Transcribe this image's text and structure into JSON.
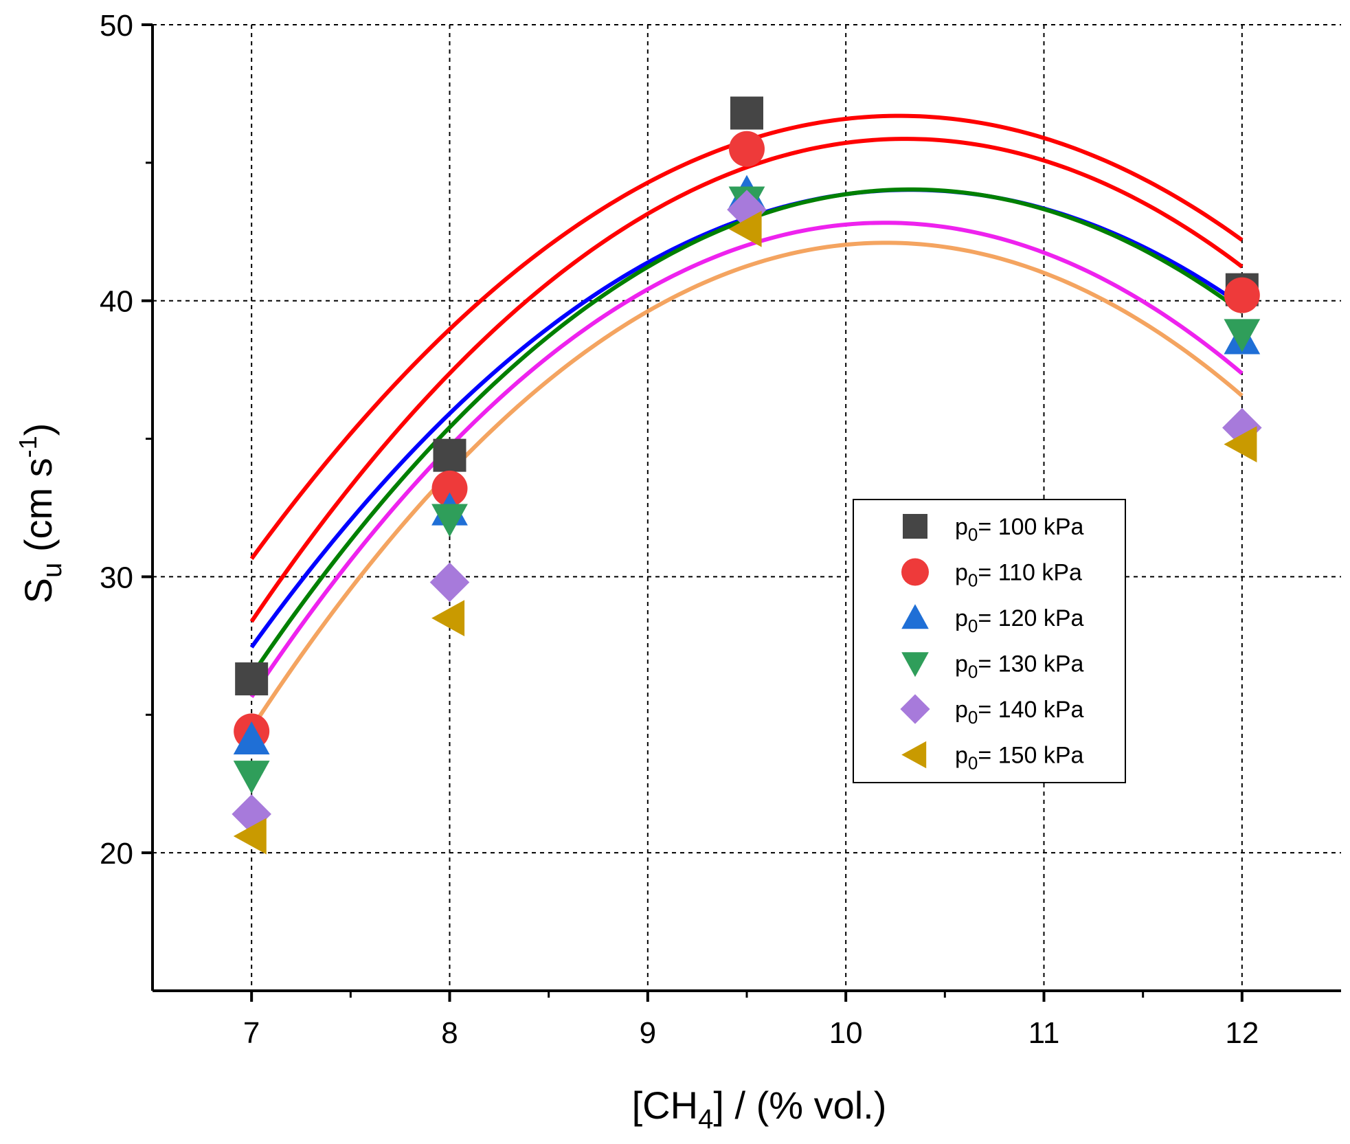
{
  "chart_data": {
    "type": "scatter",
    "title": "",
    "xlabel": {
      "main": "[CH",
      "sub": "4",
      "rest": "] / (% vol.)"
    },
    "ylabel": {
      "main": "S",
      "sub": "u",
      "unit_open": " (cm s",
      "sup": "-1",
      "unit_close": ")"
    },
    "xlim": [
      6.5,
      12.5
    ],
    "ylim": [
      15,
      50
    ],
    "xticks": [
      7,
      8,
      9,
      10,
      11,
      12
    ],
    "yticks": [
      20,
      30,
      40,
      50
    ],
    "x_minor_ticks": [
      7.5,
      8.5,
      9.5,
      10.5,
      11.5
    ],
    "y_minor_ticks": [
      25,
      35,
      45
    ],
    "grid": true,
    "legend_position": "center-right",
    "legend_prefix": "p",
    "legend_sub": "0",
    "x": [
      7,
      8,
      9.5,
      12
    ],
    "series": [
      {
        "name": "= 100 kPa",
        "marker": "square",
        "marker_color": "#454545",
        "line_color": "#ff0000",
        "values": [
          26.3,
          34.4,
          46.8,
          40.4
        ],
        "fit": [
          -1.5016,
          30.84,
          -111.65
        ]
      },
      {
        "name": "= 110 kPa",
        "marker": "circle",
        "marker_color": "#ee3a3a",
        "line_color": "#ff0000",
        "values": [
          24.4,
          33.2,
          45.5,
          40.2
        ],
        "fit": [
          -1.6047,
          33.06,
          -124.41
        ]
      },
      {
        "name": "= 120 kPa",
        "marker": "triangle-up",
        "marker_color": "#1f6fd6",
        "line_color": "#0000ff",
        "values": [
          24.1,
          32.4,
          43.9,
          38.6
        ],
        "fit": [
          -1.4976,
          30.93,
          -115.68
        ]
      },
      {
        "name": "= 130 kPa",
        "marker": "triangle-down",
        "marker_color": "#2f9e5a",
        "line_color": "#008000",
        "values": [
          22.8,
          32.1,
          43.6,
          38.8
        ],
        "fit": [
          -1.5887,
          32.82,
          -125.47
        ]
      },
      {
        "name": "= 140 kPa",
        "marker": "diamond",
        "marker_color": "#a77adb",
        "line_color": "#ee22ee",
        "values": [
          21.4,
          29.8,
          43.3,
          35.4
        ],
        "fit": [
          -1.6803,
          34.27,
          -131.91
        ]
      },
      {
        "name": "= 150 kPa",
        "marker": "triangle-left",
        "marker_color": "#c99a00",
        "line_color": "#f4a460",
        "values": [
          20.6,
          28.5,
          42.6,
          34.8
        ],
        "fit": [
          -1.7157,
          35.01,
          -136.5
        ]
      }
    ]
  }
}
